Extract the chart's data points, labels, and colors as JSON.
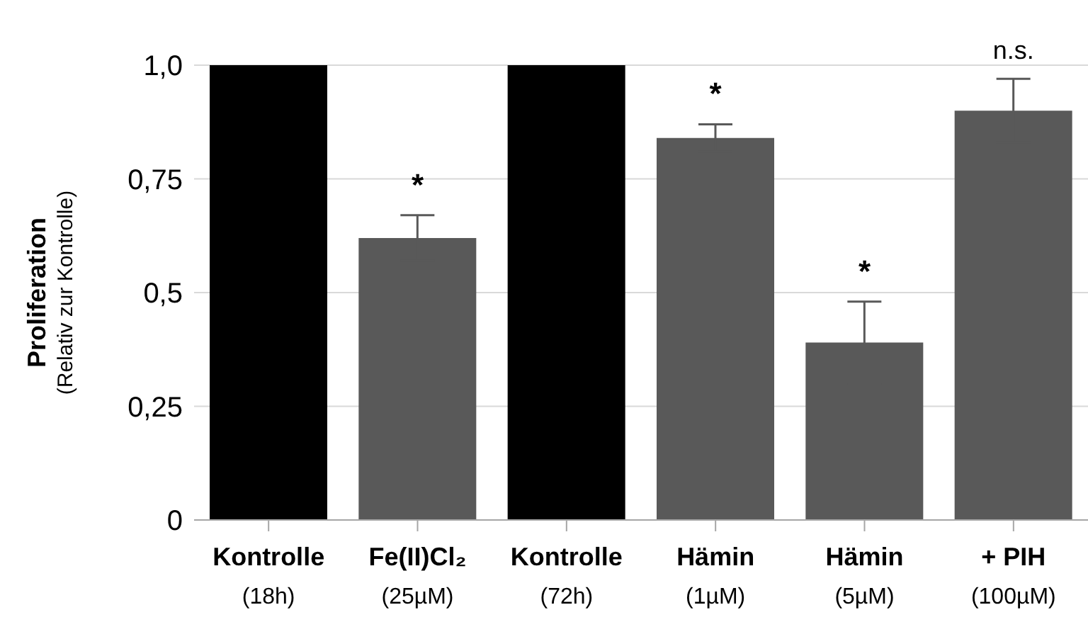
{
  "chart_data": {
    "type": "bar",
    "ylabel": "Proliferation\n(Relativ zur Kontrolle)",
    "categories": [
      "Kontrolle\n(18h)",
      "Fe(II)Cl₂\n(25µM)",
      "Kontrolle\n(72h)",
      "Hämin\n(1µM)",
      "Hämin\n(5µM)",
      "+ PIH\n(100µM)"
    ],
    "values": [
      1.0,
      0.62,
      1.0,
      0.84,
      0.39,
      0.9
    ],
    "errors": [
      null,
      0.05,
      null,
      0.03,
      0.09,
      0.07
    ],
    "colors": [
      "#000000",
      "#595959",
      "#000000",
      "#595959",
      "#595959",
      "#595959"
    ],
    "ylim": [
      0,
      1
    ],
    "yticks": [
      0,
      {
        "value": 0.25,
        "label": "0,25"
      },
      {
        "value": 0.5,
        "label": "0,5"
      },
      {
        "value": 0.75,
        "label": "0,75"
      },
      {
        "value": 1,
        "label": "1,0"
      }
    ],
    "grid": "y",
    "annotations": [
      {
        "text": "*",
        "x": "Fe(II)Cl₂\n(25µM)",
        "y": 0.67
      },
      {
        "text": "*",
        "x": "Hämin\n(1µM)",
        "y": 0.87
      },
      {
        "text": "*",
        "x": "Hämin\n(5µM)",
        "y": 0.48
      },
      {
        "text": "n.s.",
        "x": "+ PIH\n(100µM)",
        "y": 0.97
      }
    ]
  }
}
